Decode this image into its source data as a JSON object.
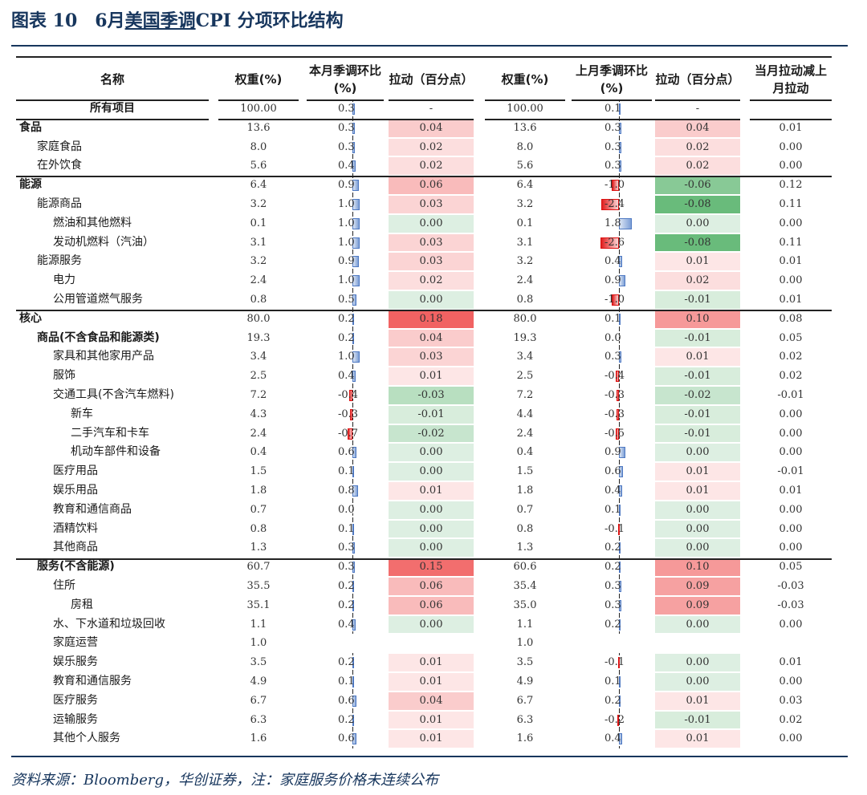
{
  "figure": {
    "title_prefix": "图表 10　6月",
    "title_link": "美国季调",
    "title_suffix": "CPI 分项环比结构",
    "source_note": "资料来源：Bloomberg，华创证券，注：家庭服务价格未连续公布"
  },
  "headers": {
    "name": "名称",
    "cur_weight": "权重(%)",
    "cur_mom": "本月季调环比(%)",
    "cur_pull": "拉动（百分点）",
    "prev_weight": "权重(%)",
    "prev_mom": "上月季调环比(%)",
    "prev_pull": "拉动（百分点）",
    "diff": "当月拉动减上月拉动"
  },
  "colors": {
    "accent": "#17365d",
    "positive_pull": "#f06a6a",
    "negative_pull": "#63be7b",
    "bar_positive": "#7d9fd6",
    "bar_negative": "#e02020"
  },
  "rows": [
    {
      "name": "所有项目",
      "level": 0,
      "bold": true,
      "center": true,
      "cur_weight": "100.00",
      "cur_mom": 0.3,
      "cur_mom_text": "0.3",
      "cur_pull": "-",
      "prev_weight": "100.00",
      "prev_mom": 0.1,
      "prev_mom_text": "0.1",
      "prev_pull": "-",
      "diff": ""
    },
    {
      "name": "食品",
      "level": 0,
      "bold": true,
      "cur_weight": "13.6",
      "cur_mom": 0.3,
      "cur_mom_text": "0.3",
      "cur_pull": "0.04",
      "prev_weight": "13.6",
      "prev_mom": 0.3,
      "prev_mom_text": "0.3",
      "prev_pull": "0.04",
      "diff": "0.01"
    },
    {
      "name": "家庭食品",
      "level": 1,
      "cur_weight": "8.0",
      "cur_mom": 0.3,
      "cur_mom_text": "0.3",
      "cur_pull": "0.02",
      "prev_weight": "8.0",
      "prev_mom": 0.3,
      "prev_mom_text": "0.3",
      "prev_pull": "0.02",
      "diff": "0.00"
    },
    {
      "name": "在外饮食",
      "level": 1,
      "cur_weight": "5.6",
      "cur_mom": 0.4,
      "cur_mom_text": "0.4",
      "cur_pull": "0.02",
      "prev_weight": "5.6",
      "prev_mom": 0.3,
      "prev_mom_text": "0.3",
      "prev_pull": "0.02",
      "diff": "0.00"
    },
    {
      "name": "能源",
      "level": 0,
      "bold": true,
      "cur_weight": "6.4",
      "cur_mom": 0.9,
      "cur_mom_text": "0.9",
      "cur_pull": "0.06",
      "prev_weight": "6.4",
      "prev_mom": -1.0,
      "prev_mom_text": "-1.0",
      "prev_pull": "-0.06",
      "diff": "0.12"
    },
    {
      "name": "能源商品",
      "level": 1,
      "cur_weight": "3.2",
      "cur_mom": 1.0,
      "cur_mom_text": "1.0",
      "cur_pull": "0.03",
      "prev_weight": "3.2",
      "prev_mom": -2.4,
      "prev_mom_text": "-2.4",
      "prev_pull": "-0.08",
      "diff": "0.11"
    },
    {
      "name": "燃油和其他燃料",
      "level": 2,
      "cur_weight": "0.1",
      "cur_mom": 1.0,
      "cur_mom_text": "1.0",
      "cur_pull": "0.00",
      "prev_weight": "0.1",
      "prev_mom": 1.8,
      "prev_mom_text": "1.8",
      "prev_pull": "0.00",
      "diff": "0.00"
    },
    {
      "name": "发动机燃料（汽油）",
      "level": 2,
      "cur_weight": "3.1",
      "cur_mom": 1.0,
      "cur_mom_text": "1.0",
      "cur_pull": "0.03",
      "prev_weight": "3.1",
      "prev_mom": -2.6,
      "prev_mom_text": "-2.6",
      "prev_pull": "-0.08",
      "diff": "0.11"
    },
    {
      "name": "能源服务",
      "level": 1,
      "cur_weight": "3.2",
      "cur_mom": 0.9,
      "cur_mom_text": "0.9",
      "cur_pull": "0.03",
      "prev_weight": "3.2",
      "prev_mom": 0.4,
      "prev_mom_text": "0.4",
      "prev_pull": "0.01",
      "diff": "0.01"
    },
    {
      "name": "电力",
      "level": 2,
      "cur_weight": "2.4",
      "cur_mom": 1.0,
      "cur_mom_text": "1.0",
      "cur_pull": "0.02",
      "prev_weight": "2.4",
      "prev_mom": 0.9,
      "prev_mom_text": "0.9",
      "prev_pull": "0.02",
      "diff": "0.00"
    },
    {
      "name": "公用管道燃气服务",
      "level": 2,
      "cur_weight": "0.8",
      "cur_mom": 0.5,
      "cur_mom_text": "0.5",
      "cur_pull": "0.00",
      "prev_weight": "0.8",
      "prev_mom": -1.0,
      "prev_mom_text": "-1.0",
      "prev_pull": "-0.01",
      "diff": "0.01"
    },
    {
      "name": "核心",
      "level": 0,
      "bold": true,
      "cur_weight": "80.0",
      "cur_mom": 0.2,
      "cur_mom_text": "0.2",
      "cur_pull": "0.18",
      "prev_weight": "80.0",
      "prev_mom": 0.1,
      "prev_mom_text": "0.1",
      "prev_pull": "0.10",
      "diff": "0.08"
    },
    {
      "name": "商品(不含食品和能源类)",
      "level": 1,
      "bold": true,
      "cur_weight": "19.3",
      "cur_mom": 0.2,
      "cur_mom_text": "0.2",
      "cur_pull": "0.04",
      "prev_weight": "19.3",
      "prev_mom": 0.0,
      "prev_mom_text": "0.0",
      "prev_pull": "-0.01",
      "diff": "0.05"
    },
    {
      "name": "家具和其他家用产品",
      "level": 2,
      "cur_weight": "3.4",
      "cur_mom": 1.0,
      "cur_mom_text": "1.0",
      "cur_pull": "0.03",
      "prev_weight": "3.4",
      "prev_mom": 0.3,
      "prev_mom_text": "0.3",
      "prev_pull": "0.01",
      "diff": "0.02"
    },
    {
      "name": "服饰",
      "level": 2,
      "cur_weight": "2.5",
      "cur_mom": 0.4,
      "cur_mom_text": "0.4",
      "cur_pull": "0.01",
      "prev_weight": "2.5",
      "prev_mom": -0.4,
      "prev_mom_text": "-0.4",
      "prev_pull": "-0.01",
      "diff": "0.02"
    },
    {
      "name": "交通工具(不含汽车燃料)",
      "level": 2,
      "cur_weight": "7.2",
      "cur_mom": -0.4,
      "cur_mom_text": "-0.4",
      "cur_pull": "-0.03",
      "prev_weight": "7.2",
      "prev_mom": -0.3,
      "prev_mom_text": "-0.3",
      "prev_pull": "-0.02",
      "diff": "-0.01"
    },
    {
      "name": "新车",
      "level": 3,
      "cur_weight": "4.3",
      "cur_mom": -0.3,
      "cur_mom_text": "-0.3",
      "cur_pull": "-0.01",
      "prev_weight": "4.4",
      "prev_mom": -0.3,
      "prev_mom_text": "-0.3",
      "prev_pull": "-0.01",
      "diff": "0.00"
    },
    {
      "name": "二手汽车和卡车",
      "level": 3,
      "cur_weight": "2.4",
      "cur_mom": -0.7,
      "cur_mom_text": "-0.7",
      "cur_pull": "-0.02",
      "prev_weight": "2.4",
      "prev_mom": -0.5,
      "prev_mom_text": "-0.5",
      "prev_pull": "-0.01",
      "diff": "0.00"
    },
    {
      "name": "机动车部件和设备",
      "level": 3,
      "cur_weight": "0.4",
      "cur_mom": 0.6,
      "cur_mom_text": "0.6",
      "cur_pull": "0.00",
      "prev_weight": "0.4",
      "prev_mom": 0.9,
      "prev_mom_text": "0.9",
      "prev_pull": "0.00",
      "diff": "0.00"
    },
    {
      "name": "医疗用品",
      "level": 2,
      "cur_weight": "1.5",
      "cur_mom": 0.1,
      "cur_mom_text": "0.1",
      "cur_pull": "0.00",
      "prev_weight": "1.5",
      "prev_mom": 0.6,
      "prev_mom_text": "0.6",
      "prev_pull": "0.01",
      "diff": "-0.01"
    },
    {
      "name": "娱乐用品",
      "level": 2,
      "cur_weight": "1.8",
      "cur_mom": 0.8,
      "cur_mom_text": "0.8",
      "cur_pull": "0.01",
      "prev_weight": "1.8",
      "prev_mom": 0.4,
      "prev_mom_text": "0.4",
      "prev_pull": "0.01",
      "diff": "0.01"
    },
    {
      "name": "教育和通信商品",
      "level": 2,
      "cur_weight": "0.7",
      "cur_mom": 0.0,
      "cur_mom_text": "0.0",
      "cur_pull": "0.00",
      "prev_weight": "0.7",
      "prev_mom": 0.1,
      "prev_mom_text": "0.1",
      "prev_pull": "0.00",
      "diff": "0.00"
    },
    {
      "name": "酒精饮料",
      "level": 2,
      "cur_weight": "0.8",
      "cur_mom": 0.1,
      "cur_mom_text": "0.1",
      "cur_pull": "0.00",
      "prev_weight": "0.8",
      "prev_mom": -0.1,
      "prev_mom_text": "-0.1",
      "prev_pull": "0.00",
      "diff": "0.00"
    },
    {
      "name": "其他商品",
      "level": 2,
      "cur_weight": "1.3",
      "cur_mom": 0.3,
      "cur_mom_text": "0.3",
      "cur_pull": "0.00",
      "prev_weight": "1.3",
      "prev_mom": 0.2,
      "prev_mom_text": "0.2",
      "prev_pull": "0.00",
      "diff": "0.00"
    },
    {
      "name": "服务(不含能源)",
      "level": 1,
      "bold": true,
      "cur_weight": "60.7",
      "cur_mom": 0.3,
      "cur_mom_text": "0.3",
      "cur_pull": "0.15",
      "prev_weight": "60.6",
      "prev_mom": 0.2,
      "prev_mom_text": "0.2",
      "prev_pull": "0.10",
      "diff": "0.05"
    },
    {
      "name": "住所",
      "level": 2,
      "cur_weight": "35.5",
      "cur_mom": 0.2,
      "cur_mom_text": "0.2",
      "cur_pull": "0.06",
      "prev_weight": "35.4",
      "prev_mom": 0.3,
      "prev_mom_text": "0.3",
      "prev_pull": "0.09",
      "diff": "-0.03"
    },
    {
      "name": "房租",
      "level": 3,
      "cur_weight": "35.1",
      "cur_mom": 0.2,
      "cur_mom_text": "0.2",
      "cur_pull": "0.06",
      "prev_weight": "35.0",
      "prev_mom": 0.3,
      "prev_mom_text": "0.3",
      "prev_pull": "0.09",
      "diff": "-0.03"
    },
    {
      "name": "水、下水道和垃圾回收",
      "level": 2,
      "cur_weight": "1.1",
      "cur_mom": 0.4,
      "cur_mom_text": "0.4",
      "cur_pull": "0.00",
      "prev_weight": "1.1",
      "prev_mom": 0.2,
      "prev_mom_text": "0.2",
      "prev_pull": "0.00",
      "diff": "0.00"
    },
    {
      "name": "家庭运营",
      "level": 2,
      "cur_weight": "1.0",
      "cur_mom": null,
      "cur_mom_text": "",
      "cur_pull": "",
      "prev_weight": "1.0",
      "prev_mom": null,
      "prev_mom_text": "",
      "prev_pull": "",
      "diff": ""
    },
    {
      "name": "娱乐服务",
      "level": 2,
      "cur_weight": "3.5",
      "cur_mom": 0.2,
      "cur_mom_text": "0.2",
      "cur_pull": "0.01",
      "prev_weight": "3.5",
      "prev_mom": -0.1,
      "prev_mom_text": "-0.1",
      "prev_pull": "0.00",
      "diff": "0.01"
    },
    {
      "name": "教育和通信服务",
      "level": 2,
      "cur_weight": "4.9",
      "cur_mom": 0.1,
      "cur_mom_text": "0.1",
      "cur_pull": "0.01",
      "prev_weight": "4.9",
      "prev_mom": 0.1,
      "prev_mom_text": "0.1",
      "prev_pull": "0.00",
      "diff": "0.00"
    },
    {
      "name": "医疗服务",
      "level": 2,
      "cur_weight": "6.7",
      "cur_mom": 0.6,
      "cur_mom_text": "0.6",
      "cur_pull": "0.04",
      "prev_weight": "6.7",
      "prev_mom": 0.2,
      "prev_mom_text": "0.2",
      "prev_pull": "0.01",
      "diff": "0.03"
    },
    {
      "name": "运输服务",
      "level": 2,
      "cur_weight": "6.3",
      "cur_mom": 0.2,
      "cur_mom_text": "0.2",
      "cur_pull": "0.01",
      "prev_weight": "6.3",
      "prev_mom": -0.2,
      "prev_mom_text": "-0.2",
      "prev_pull": "-0.01",
      "diff": "0.02"
    },
    {
      "name": "其他个人服务",
      "level": 2,
      "cur_weight": "1.6",
      "cur_mom": 0.6,
      "cur_mom_text": "0.6",
      "cur_pull": "0.01",
      "prev_weight": "1.6",
      "prev_mom": 0.4,
      "prev_mom_text": "0.4",
      "prev_pull": "0.01",
      "diff": "0.00"
    }
  ]
}
